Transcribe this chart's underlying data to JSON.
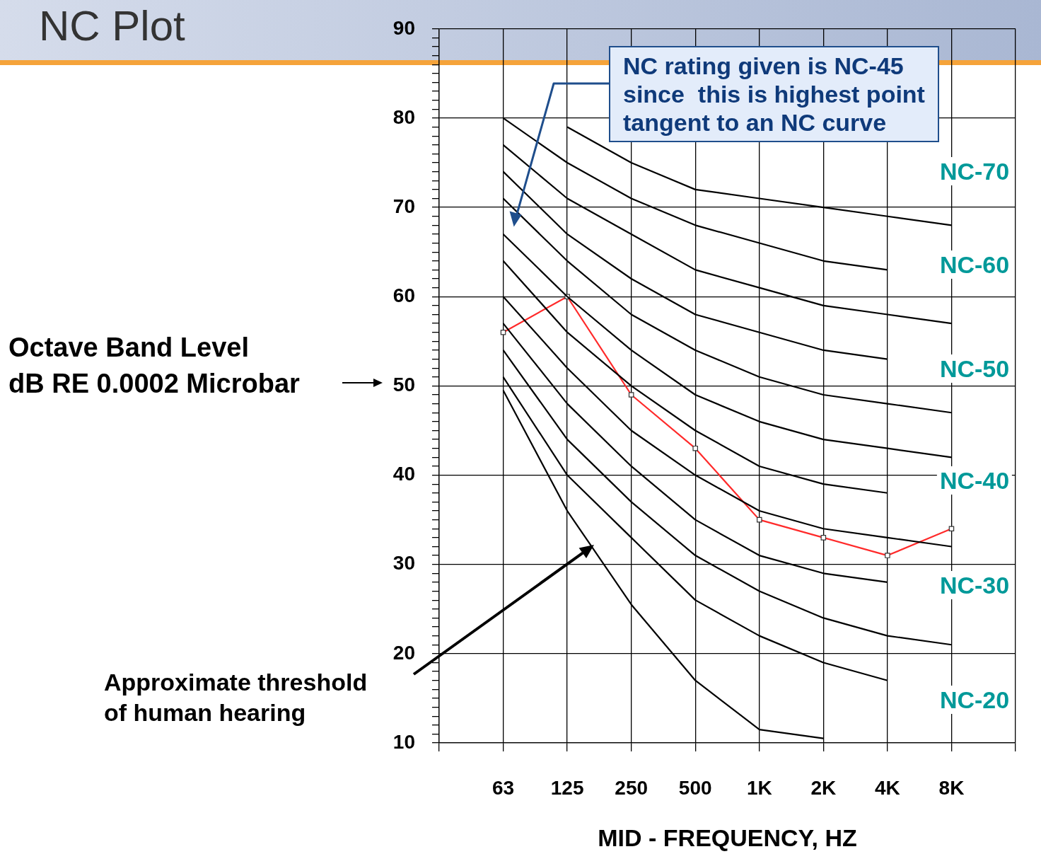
{
  "chart_data": {
    "type": "line",
    "title": "NC Plot",
    "xlabel": "MID - FREQUENCY, HZ",
    "ylabel": "Octave Band Level\ndB RE 0.0002 Microbar",
    "categories": [
      null,
      "63",
      "125",
      "250",
      "500",
      "1K",
      "2K",
      "4K",
      "8K",
      null
    ],
    "ylim": [
      10,
      90
    ],
    "yticks": [
      10,
      {
        "value": 11,
        "label": null
      },
      {
        "value": 12,
        "label": null
      },
      {
        "value": 13,
        "label": null
      },
      {
        "value": 14,
        "label": null
      },
      {
        "value": 15,
        "label": null
      },
      {
        "value": 16,
        "label": null
      },
      {
        "value": 17,
        "label": null
      },
      {
        "value": 18,
        "label": null
      },
      {
        "value": 19,
        "label": null
      },
      20,
      {
        "value": 21,
        "label": null
      },
      {
        "value": 22,
        "label": null
      },
      {
        "value": 23,
        "label": null
      },
      {
        "value": 24,
        "label": null
      },
      {
        "value": 25,
        "label": null
      },
      {
        "value": 26,
        "label": null
      },
      {
        "value": 27,
        "label": null
      },
      {
        "value": 28,
        "label": null
      },
      {
        "value": 29,
        "label": null
      },
      30,
      {
        "value": 31,
        "label": null
      },
      {
        "value": 32,
        "label": null
      },
      {
        "value": 33,
        "label": null
      },
      {
        "value": 34,
        "label": null
      },
      {
        "value": 35,
        "label": null
      },
      {
        "value": 36,
        "label": null
      },
      {
        "value": 37,
        "label": null
      },
      {
        "value": 38,
        "label": null
      },
      {
        "value": 39,
        "label": null
      },
      40,
      {
        "value": 41,
        "label": null
      },
      {
        "value": 42,
        "label": null
      },
      {
        "value": 43,
        "label": null
      },
      {
        "value": 44,
        "label": null
      },
      {
        "value": 45,
        "label": null
      },
      {
        "value": 46,
        "label": null
      },
      {
        "value": 47,
        "label": null
      },
      {
        "value": 48,
        "label": null
      },
      {
        "value": 49,
        "label": null
      },
      50,
      {
        "value": 51,
        "label": null
      },
      {
        "value": 52,
        "label": null
      },
      {
        "value": 53,
        "label": null
      },
      {
        "value": 54,
        "label": null
      },
      {
        "value": 55,
        "label": null
      },
      {
        "value": 56,
        "label": null
      },
      {
        "value": 57,
        "label": null
      },
      {
        "value": 58,
        "label": null
      },
      {
        "value": 59,
        "label": null
      },
      60,
      {
        "value": 61,
        "label": null
      },
      {
        "value": 62,
        "label": null
      },
      {
        "value": 63,
        "label": null
      },
      {
        "value": 64,
        "label": null
      },
      {
        "value": 65,
        "label": null
      },
      {
        "value": 66,
        "label": null
      },
      {
        "value": 67,
        "label": null
      },
      {
        "value": 68,
        "label": null
      },
      {
        "value": 69,
        "label": null
      },
      70,
      {
        "value": 71,
        "label": null
      },
      {
        "value": 72,
        "label": null
      },
      {
        "value": 73,
        "label": null
      },
      {
        "value": 74,
        "label": null
      },
      {
        "value": 75,
        "label": null
      },
      {
        "value": 76,
        "label": null
      },
      {
        "value": 77,
        "label": null
      },
      {
        "value": 78,
        "label": null
      },
      {
        "value": 79,
        "label": null
      },
      80,
      {
        "value": 81,
        "label": null
      },
      {
        "value": 82,
        "label": null
      },
      {
        "value": 83,
        "label": null
      },
      {
        "value": 84,
        "label": null
      },
      {
        "value": 85,
        "label": null
      },
      {
        "value": 86,
        "label": null
      },
      {
        "value": 87,
        "label": null
      },
      {
        "value": 88,
        "label": null
      },
      {
        "value": 89,
        "label": null
      },
      90
    ],
    "grid": true,
    "legend": false,
    "marker": "none",
    "line_style": "solid",
    "series": [
      {
        "color": "#000000",
        "values": [
          null,
          null,
          79,
          75,
          72,
          71,
          70,
          69,
          68,
          null
        ]
      },
      {
        "color": "#000000",
        "values": [
          null,
          80,
          75,
          71,
          68,
          66,
          64,
          63,
          null,
          null
        ]
      },
      {
        "color": "#000000",
        "values": [
          null,
          77,
          71,
          67,
          63,
          61,
          59,
          58,
          57,
          null
        ]
      },
      {
        "color": "#000000",
        "values": [
          null,
          74,
          67,
          62,
          58,
          56,
          54,
          53,
          null,
          null
        ]
      },
      {
        "color": "#000000",
        "values": [
          null,
          71,
          64,
          58,
          54,
          51,
          49,
          48,
          47,
          null
        ]
      },
      {
        "color": "#000000",
        "values": [
          null,
          67,
          60,
          54,
          49,
          46,
          44,
          43,
          42,
          null
        ]
      },
      {
        "color": "#000000",
        "values": [
          null,
          64,
          56,
          50,
          45,
          41,
          39,
          38,
          null,
          null
        ]
      },
      {
        "color": "#000000",
        "values": [
          null,
          60,
          52,
          45,
          40,
          36,
          34,
          33,
          32,
          null
        ]
      },
      {
        "color": "#000000",
        "values": [
          null,
          57,
          48,
          41,
          35,
          31,
          29,
          28,
          null,
          null
        ]
      },
      {
        "color": "#000000",
        "values": [
          null,
          54,
          44,
          37,
          31,
          27,
          24,
          22,
          21,
          null
        ]
      },
      {
        "color": "#000000",
        "values": [
          null,
          51,
          40,
          33,
          26,
          22,
          19,
          17,
          null,
          null
        ]
      },
      {
        "color": "#000000",
        "values": [
          null,
          49.5,
          36,
          25.5,
          17,
          11.5,
          10.5,
          null,
          null,
          null
        ]
      },
      {
        "color": "#ff2a2a",
        "marker": "square",
        "values": [
          null,
          56,
          60,
          49,
          43,
          35,
          33,
          31,
          34,
          null
        ]
      }
    ],
    "annotations": [
      "NC-70",
      "NC-60",
      "NC-50",
      "NC-40",
      "NC-30",
      "NC-20",
      "NC rating given is NC-45\nsince  this is highest point\ntangent to an NC curve",
      "Approximate threshold\nof human hearing"
    ]
  }
}
